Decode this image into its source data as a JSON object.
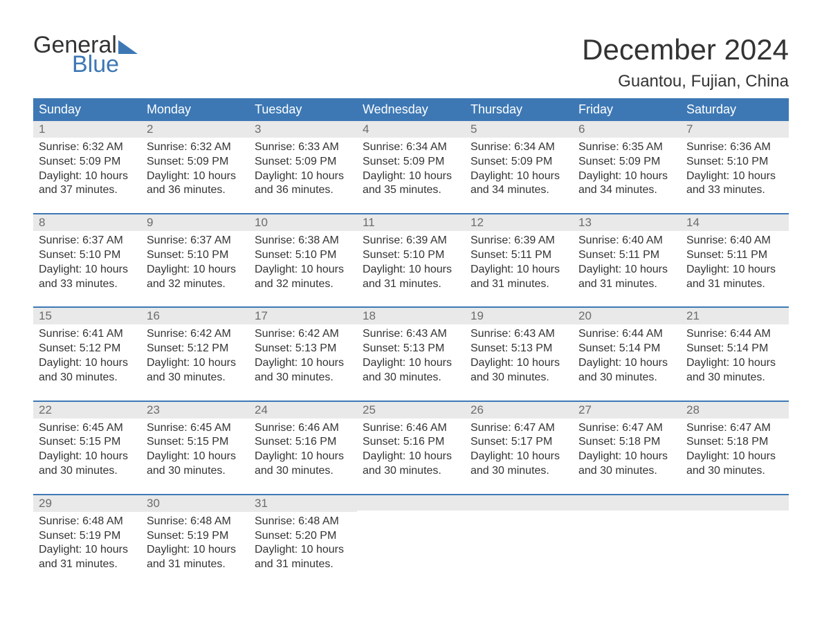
{
  "brand": {
    "word1": "General",
    "word2": "Blue"
  },
  "title": "December 2024",
  "location": "Guantou, Fujian, China",
  "colors": {
    "header_bg": "#3d78b5",
    "header_text": "#ffffff",
    "daynum_bg": "#e9e9e9",
    "daynum_text": "#6c6c6c",
    "body_text": "#333333",
    "accent": "#3d78b5",
    "page_bg": "#ffffff"
  },
  "typography": {
    "title_fontsize": 42,
    "location_fontsize": 24,
    "dayheader_fontsize": 18,
    "daynum_fontsize": 17,
    "body_fontsize": 16,
    "logo_fontsize": 34
  },
  "day_headers": [
    "Sunday",
    "Monday",
    "Tuesday",
    "Wednesday",
    "Thursday",
    "Friday",
    "Saturday"
  ],
  "labels": {
    "sunrise": "Sunrise:",
    "sunset": "Sunset:",
    "daylight": "Daylight:"
  },
  "weeks": [
    [
      {
        "n": "1",
        "sunrise": "6:32 AM",
        "sunset": "5:09 PM",
        "daylight": "10 hours and 37 minutes."
      },
      {
        "n": "2",
        "sunrise": "6:32 AM",
        "sunset": "5:09 PM",
        "daylight": "10 hours and 36 minutes."
      },
      {
        "n": "3",
        "sunrise": "6:33 AM",
        "sunset": "5:09 PM",
        "daylight": "10 hours and 36 minutes."
      },
      {
        "n": "4",
        "sunrise": "6:34 AM",
        "sunset": "5:09 PM",
        "daylight": "10 hours and 35 minutes."
      },
      {
        "n": "5",
        "sunrise": "6:34 AM",
        "sunset": "5:09 PM",
        "daylight": "10 hours and 34 minutes."
      },
      {
        "n": "6",
        "sunrise": "6:35 AM",
        "sunset": "5:09 PM",
        "daylight": "10 hours and 34 minutes."
      },
      {
        "n": "7",
        "sunrise": "6:36 AM",
        "sunset": "5:10 PM",
        "daylight": "10 hours and 33 minutes."
      }
    ],
    [
      {
        "n": "8",
        "sunrise": "6:37 AM",
        "sunset": "5:10 PM",
        "daylight": "10 hours and 33 minutes."
      },
      {
        "n": "9",
        "sunrise": "6:37 AM",
        "sunset": "5:10 PM",
        "daylight": "10 hours and 32 minutes."
      },
      {
        "n": "10",
        "sunrise": "6:38 AM",
        "sunset": "5:10 PM",
        "daylight": "10 hours and 32 minutes."
      },
      {
        "n": "11",
        "sunrise": "6:39 AM",
        "sunset": "5:10 PM",
        "daylight": "10 hours and 31 minutes."
      },
      {
        "n": "12",
        "sunrise": "6:39 AM",
        "sunset": "5:11 PM",
        "daylight": "10 hours and 31 minutes."
      },
      {
        "n": "13",
        "sunrise": "6:40 AM",
        "sunset": "5:11 PM",
        "daylight": "10 hours and 31 minutes."
      },
      {
        "n": "14",
        "sunrise": "6:40 AM",
        "sunset": "5:11 PM",
        "daylight": "10 hours and 31 minutes."
      }
    ],
    [
      {
        "n": "15",
        "sunrise": "6:41 AM",
        "sunset": "5:12 PM",
        "daylight": "10 hours and 30 minutes."
      },
      {
        "n": "16",
        "sunrise": "6:42 AM",
        "sunset": "5:12 PM",
        "daylight": "10 hours and 30 minutes."
      },
      {
        "n": "17",
        "sunrise": "6:42 AM",
        "sunset": "5:13 PM",
        "daylight": "10 hours and 30 minutes."
      },
      {
        "n": "18",
        "sunrise": "6:43 AM",
        "sunset": "5:13 PM",
        "daylight": "10 hours and 30 minutes."
      },
      {
        "n": "19",
        "sunrise": "6:43 AM",
        "sunset": "5:13 PM",
        "daylight": "10 hours and 30 minutes."
      },
      {
        "n": "20",
        "sunrise": "6:44 AM",
        "sunset": "5:14 PM",
        "daylight": "10 hours and 30 minutes."
      },
      {
        "n": "21",
        "sunrise": "6:44 AM",
        "sunset": "5:14 PM",
        "daylight": "10 hours and 30 minutes."
      }
    ],
    [
      {
        "n": "22",
        "sunrise": "6:45 AM",
        "sunset": "5:15 PM",
        "daylight": "10 hours and 30 minutes."
      },
      {
        "n": "23",
        "sunrise": "6:45 AM",
        "sunset": "5:15 PM",
        "daylight": "10 hours and 30 minutes."
      },
      {
        "n": "24",
        "sunrise": "6:46 AM",
        "sunset": "5:16 PM",
        "daylight": "10 hours and 30 minutes."
      },
      {
        "n": "25",
        "sunrise": "6:46 AM",
        "sunset": "5:16 PM",
        "daylight": "10 hours and 30 minutes."
      },
      {
        "n": "26",
        "sunrise": "6:47 AM",
        "sunset": "5:17 PM",
        "daylight": "10 hours and 30 minutes."
      },
      {
        "n": "27",
        "sunrise": "6:47 AM",
        "sunset": "5:18 PM",
        "daylight": "10 hours and 30 minutes."
      },
      {
        "n": "28",
        "sunrise": "6:47 AM",
        "sunset": "5:18 PM",
        "daylight": "10 hours and 30 minutes."
      }
    ],
    [
      {
        "n": "29",
        "sunrise": "6:48 AM",
        "sunset": "5:19 PM",
        "daylight": "10 hours and 31 minutes."
      },
      {
        "n": "30",
        "sunrise": "6:48 AM",
        "sunset": "5:19 PM",
        "daylight": "10 hours and 31 minutes."
      },
      {
        "n": "31",
        "sunrise": "6:48 AM",
        "sunset": "5:20 PM",
        "daylight": "10 hours and 31 minutes."
      },
      null,
      null,
      null,
      null
    ]
  ]
}
